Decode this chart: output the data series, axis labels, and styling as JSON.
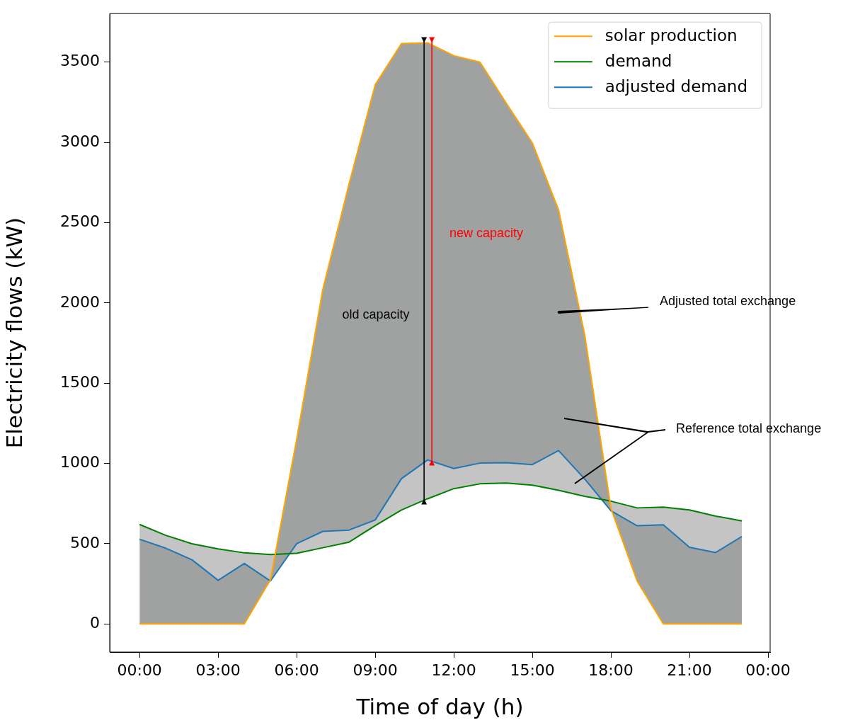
{
  "chart_data": {
    "type": "line",
    "xlabel": "Time of day (h)",
    "ylabel": "Electricity flows (kW)",
    "x": [
      0,
      1,
      2,
      3,
      4,
      5,
      6,
      7,
      8,
      9,
      10,
      11,
      12,
      13,
      14,
      15,
      16,
      17,
      18,
      19,
      20,
      21,
      22,
      23
    ],
    "series": [
      {
        "name": "solar production",
        "color": "#ffa500",
        "values": [
          0,
          0,
          0,
          0,
          0,
          276,
          1150,
          2085,
          2740,
          3360,
          3615,
          3620,
          3540,
          3500,
          3245,
          2996,
          2580,
          1800,
          720,
          267,
          0,
          0,
          0,
          0
        ]
      },
      {
        "name": "demand",
        "color": "#008000",
        "values": [
          620,
          552,
          500,
          468,
          443,
          432,
          440,
          475,
          510,
          613,
          710,
          780,
          843,
          873,
          878,
          865,
          833,
          795,
          765,
          723,
          728,
          710,
          672,
          642
        ]
      },
      {
        "name": "adjusted demand",
        "color": "#1f77b4",
        "values": [
          528,
          472,
          400,
          272,
          377,
          268,
          500,
          577,
          585,
          648,
          905,
          1022,
          968,
          1002,
          1005,
          993,
          1080,
          903,
          705,
          612,
          618,
          478,
          445,
          545
        ]
      }
    ],
    "xlim": [
      -1.14,
      24.08
    ],
    "ylim": [
      -175,
      3802
    ],
    "xticks": [
      {
        "value": 0,
        "label": "00:00"
      },
      {
        "value": 3,
        "label": "03:00"
      },
      {
        "value": 6,
        "label": "06:00"
      },
      {
        "value": 9,
        "label": "09:00"
      },
      {
        "value": 12,
        "label": "12:00"
      },
      {
        "value": 15,
        "label": "15:00"
      },
      {
        "value": 18,
        "label": "18:00"
      },
      {
        "value": 21,
        "label": "21:00"
      },
      {
        "value": 24,
        "label": "00:00"
      }
    ],
    "yticks": [
      0,
      500,
      1000,
      1500,
      2000,
      2500,
      3000,
      3500
    ],
    "annotations": [
      "old capacity",
      "new capacity",
      "Adjusted total exchange",
      "Reference total exchange"
    ],
    "grid": false,
    "legend": "top right",
    "marker": "none",
    "line_style": "solid"
  }
}
